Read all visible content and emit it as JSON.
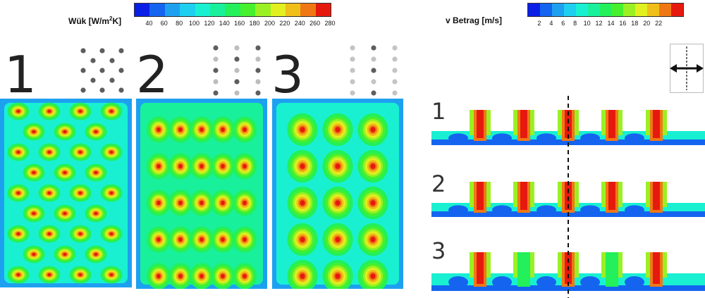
{
  "legend_left": {
    "title": "Wük [W/m",
    "title_sup": "2",
    "title_end": "K]",
    "ticks": [
      "40",
      "60",
      "80",
      "100",
      "120",
      "140",
      "160",
      "180",
      "200",
      "220",
      "240",
      "260",
      "280"
    ],
    "colors": [
      "#0a1fe6",
      "#1464f0",
      "#1ea0f0",
      "#1ecff0",
      "#19f0d2",
      "#19f09b",
      "#23f05a",
      "#46f02d",
      "#9bf023",
      "#e1f01e",
      "#f0be19",
      "#f07814",
      "#e6190f"
    ]
  },
  "legend_right": {
    "title": "v Betrag [m/s]",
    "ticks": [
      "2",
      "4",
      "6",
      "8",
      "10",
      "12",
      "14",
      "16",
      "18",
      "20",
      "22"
    ],
    "colors": [
      "#0a1fe6",
      "#1464f0",
      "#1ea0f0",
      "#1ecff0",
      "#19f0d2",
      "#19f09b",
      "#23f05a",
      "#46f02d",
      "#9bf023",
      "#e1f01e",
      "#f0be19",
      "#f07814",
      "#e6190f"
    ]
  },
  "configs": [
    {
      "label": "1",
      "layout": "staggered"
    },
    {
      "label": "2",
      "layout": "inline-dense"
    },
    {
      "label": "3",
      "layout": "inline-sparse"
    }
  ],
  "sections": [
    {
      "label": "1"
    },
    {
      "label": "2"
    },
    {
      "label": "3"
    }
  ]
}
